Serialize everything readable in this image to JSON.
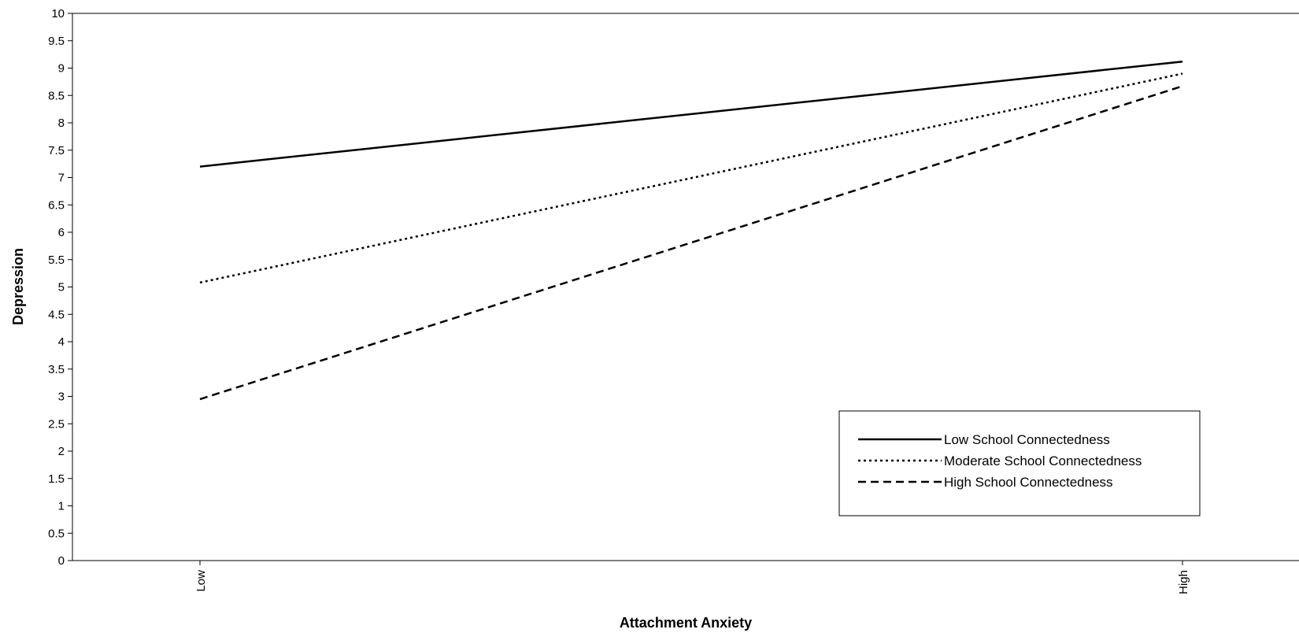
{
  "chart_data": {
    "type": "line",
    "xlabel": "Attachment Anxiety",
    "ylabel": "Depression",
    "categories": [
      "Low",
      "High"
    ],
    "ylim": [
      0,
      10
    ],
    "yticks": [
      "0",
      "0.5",
      "1",
      "1.5",
      "2",
      "2.5",
      "3",
      "3.5",
      "4",
      "4.5",
      "5",
      "5.5",
      "6",
      "6.5",
      "7",
      "7.5",
      "8",
      "8.5",
      "9",
      "9.5",
      "10"
    ],
    "grid": false,
    "legend_position": "bottom-right",
    "series": [
      {
        "name": "Low School Connectedness",
        "values": [
          7.2,
          9.12
        ],
        "line_style": "solid",
        "color": "#000000"
      },
      {
        "name": "Moderate School Connectedness",
        "values": [
          5.08,
          8.9
        ],
        "line_style": "dotted",
        "color": "#000000"
      },
      {
        "name": "High School Connectedness",
        "values": [
          2.95,
          8.67
        ],
        "line_style": "dashed",
        "color": "#000000"
      }
    ]
  }
}
